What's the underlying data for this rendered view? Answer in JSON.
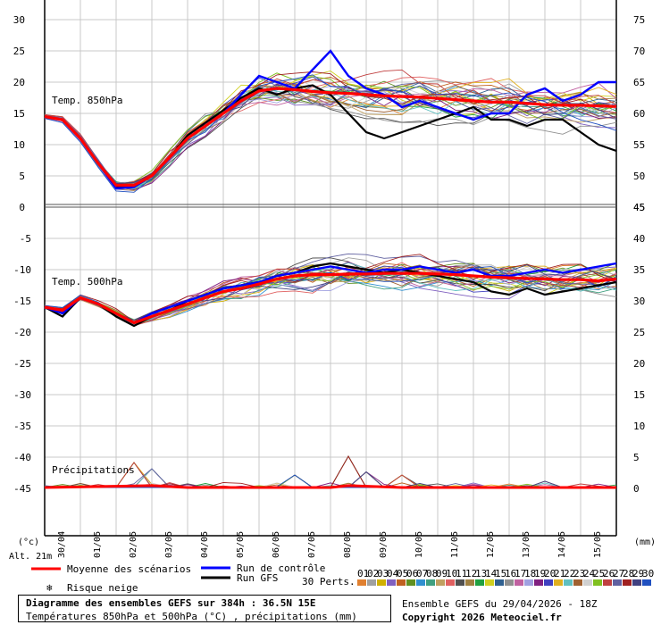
{
  "chart_data": [
    {
      "type": "line",
      "panel": "temp850",
      "label": "Temp. 850hPa",
      "unit_left": "°C",
      "ylim_left": [
        0,
        30
      ],
      "left_ticks": [
        0,
        5,
        10,
        15,
        20,
        25,
        30
      ],
      "right_ticks": [
        45,
        50,
        55,
        60,
        65,
        70,
        75
      ],
      "mean": [
        [
          0,
          14.5
        ],
        [
          1,
          14
        ],
        [
          2,
          11
        ],
        [
          3,
          7
        ],
        [
          4,
          3.5
        ],
        [
          5,
          3.5
        ],
        [
          6,
          5
        ],
        [
          7,
          8
        ],
        [
          8,
          11
        ],
        [
          9,
          13
        ],
        [
          10,
          15
        ],
        [
          11,
          17
        ],
        [
          12,
          18.6
        ],
        [
          13,
          19
        ],
        [
          14,
          18.8
        ],
        [
          15,
          18.5
        ],
        [
          16,
          18.3
        ],
        [
          17,
          18.2
        ],
        [
          18,
          18
        ],
        [
          19,
          17.8
        ],
        [
          20,
          17.7
        ],
        [
          21,
          17.6
        ],
        [
          22,
          17.4
        ],
        [
          23,
          17.2
        ],
        [
          24,
          17
        ],
        [
          25,
          16.8
        ],
        [
          26,
          16.8
        ],
        [
          27,
          16.6
        ],
        [
          28,
          16.4
        ],
        [
          29,
          16.3
        ],
        [
          30,
          16.3
        ],
        [
          31,
          16.2
        ],
        [
          32,
          16.1
        ]
      ],
      "control": [
        [
          0,
          14.5
        ],
        [
          1,
          14
        ],
        [
          2,
          11
        ],
        [
          3,
          7
        ],
        [
          4,
          3
        ],
        [
          5,
          3.2
        ],
        [
          6,
          5
        ],
        [
          7,
          8
        ],
        [
          8,
          11
        ],
        [
          9,
          13
        ],
        [
          10,
          15
        ],
        [
          11,
          18
        ],
        [
          12,
          21
        ],
        [
          13,
          20
        ],
        [
          14,
          19
        ],
        [
          15,
          22
        ],
        [
          16,
          25
        ],
        [
          17,
          21
        ],
        [
          18,
          19
        ],
        [
          19,
          18
        ],
        [
          20,
          16
        ],
        [
          21,
          17
        ],
        [
          22,
          16
        ],
        [
          23,
          15
        ],
        [
          24,
          14
        ],
        [
          25,
          15
        ],
        [
          26,
          15
        ],
        [
          27,
          18
        ],
        [
          28,
          19
        ],
        [
          29,
          17
        ],
        [
          30,
          18
        ],
        [
          31,
          20
        ],
        [
          32,
          20
        ]
      ],
      "gfs": [
        [
          0,
          14.5
        ],
        [
          1,
          14
        ],
        [
          2,
          11
        ],
        [
          3,
          7
        ],
        [
          4,
          3.2
        ],
        [
          5,
          3.5
        ],
        [
          6,
          5
        ],
        [
          7,
          8
        ],
        [
          8,
          11.5
        ],
        [
          9,
          13.5
        ],
        [
          10,
          15.5
        ],
        [
          11,
          17.5
        ],
        [
          12,
          19
        ],
        [
          13,
          18
        ],
        [
          14,
          19
        ],
        [
          15,
          19.5
        ],
        [
          16,
          18
        ],
        [
          17,
          15
        ],
        [
          18,
          12
        ],
        [
          19,
          11
        ],
        [
          20,
          12
        ],
        [
          21,
          13
        ],
        [
          22,
          14
        ],
        [
          23,
          15
        ],
        [
          24,
          16
        ],
        [
          25,
          14
        ],
        [
          26,
          14
        ],
        [
          27,
          13
        ],
        [
          28,
          14
        ],
        [
          29,
          14
        ],
        [
          30,
          12
        ],
        [
          31,
          10
        ],
        [
          32,
          9
        ]
      ]
    },
    {
      "type": "line",
      "panel": "temp500",
      "label": "Temp. 500hPa",
      "unit_left": "°C",
      "ylim_left": [
        -45,
        0
      ],
      "left_ticks": [
        -45,
        -40,
        -35,
        -30,
        -25,
        -20,
        -15,
        -10,
        -5
      ],
      "right_ticks": [
        0,
        5,
        10,
        15,
        20,
        25,
        30,
        35,
        40,
        45
      ],
      "mean": [
        [
          0,
          -16
        ],
        [
          1,
          -16.5
        ],
        [
          2,
          -14.5
        ],
        [
          3,
          -15.5
        ],
        [
          4,
          -17
        ],
        [
          5,
          -18.5
        ],
        [
          6,
          -17.5
        ],
        [
          7,
          -16.5
        ],
        [
          8,
          -15.5
        ],
        [
          9,
          -14.5
        ],
        [
          10,
          -13.5
        ],
        [
          11,
          -13
        ],
        [
          12,
          -12.3
        ],
        [
          13,
          -11.5
        ],
        [
          14,
          -11
        ],
        [
          15,
          -10.8
        ],
        [
          16,
          -10.8
        ],
        [
          17,
          -10.7
        ],
        [
          18,
          -10.7
        ],
        [
          19,
          -10.6
        ],
        [
          20,
          -10.6
        ],
        [
          21,
          -10.6
        ],
        [
          22,
          -10.7
        ],
        [
          23,
          -10.8
        ],
        [
          24,
          -11
        ],
        [
          25,
          -11.2
        ],
        [
          26,
          -11.3
        ],
        [
          27,
          -11.4
        ],
        [
          28,
          -11.5
        ],
        [
          29,
          -11.6
        ],
        [
          30,
          -11.6
        ],
        [
          31,
          -11.8
        ],
        [
          32,
          -11.5
        ]
      ],
      "control": [
        [
          0,
          -16
        ],
        [
          1,
          -17
        ],
        [
          2,
          -14.5
        ],
        [
          3,
          -15.5
        ],
        [
          4,
          -17
        ],
        [
          5,
          -18.5
        ],
        [
          6,
          -17
        ],
        [
          7,
          -16
        ],
        [
          8,
          -15
        ],
        [
          9,
          -14
        ],
        [
          10,
          -13
        ],
        [
          11,
          -12.5
        ],
        [
          12,
          -12
        ],
        [
          13,
          -11
        ],
        [
          14,
          -10.5
        ],
        [
          15,
          -10
        ],
        [
          16,
          -9.5
        ],
        [
          17,
          -10
        ],
        [
          18,
          -10.5
        ],
        [
          19,
          -10
        ],
        [
          20,
          -10
        ],
        [
          21,
          -9.5
        ],
        [
          22,
          -10
        ],
        [
          23,
          -10.5
        ],
        [
          24,
          -10
        ],
        [
          25,
          -11
        ],
        [
          26,
          -11
        ],
        [
          27,
          -10.5
        ],
        [
          28,
          -10
        ],
        [
          29,
          -10.5
        ],
        [
          30,
          -10
        ],
        [
          31,
          -9.5
        ],
        [
          32,
          -9
        ]
      ],
      "gfs": [
        [
          0,
          -16
        ],
        [
          1,
          -17.5
        ],
        [
          2,
          -14.5
        ],
        [
          3,
          -15.5
        ],
        [
          4,
          -17.5
        ],
        [
          5,
          -19
        ],
        [
          6,
          -17.5
        ],
        [
          7,
          -16.5
        ],
        [
          8,
          -15
        ],
        [
          9,
          -14
        ],
        [
          10,
          -13
        ],
        [
          11,
          -12.5
        ],
        [
          12,
          -12
        ],
        [
          13,
          -11
        ],
        [
          14,
          -10.5
        ],
        [
          15,
          -9.5
        ],
        [
          16,
          -9
        ],
        [
          17,
          -9.5
        ],
        [
          18,
          -10
        ],
        [
          19,
          -10.5
        ],
        [
          20,
          -10
        ],
        [
          21,
          -10.5
        ],
        [
          22,
          -11
        ],
        [
          23,
          -11.5
        ],
        [
          24,
          -12
        ],
        [
          25,
          -13.5
        ],
        [
          26,
          -14
        ],
        [
          27,
          -13
        ],
        [
          28,
          -14
        ],
        [
          29,
          -13.5
        ],
        [
          30,
          -13
        ],
        [
          31,
          -12.5
        ],
        [
          32,
          -12
        ]
      ]
    },
    {
      "type": "line",
      "panel": "precip",
      "label": "Précipitations",
      "unit_right": "mm",
      "mean": [
        [
          0,
          0
        ],
        [
          4,
          0.2
        ],
        [
          6,
          0.3
        ],
        [
          8,
          0
        ],
        [
          16,
          0
        ],
        [
          17,
          0.3
        ],
        [
          20,
          0
        ],
        [
          32,
          0
        ]
      ],
      "peaks": [
        [
          5,
          4
        ],
        [
          6,
          3
        ],
        [
          14,
          2
        ],
        [
          17,
          5
        ],
        [
          18,
          2.5
        ],
        [
          20,
          2
        ],
        [
          28,
          1
        ]
      ]
    }
  ],
  "axes": {
    "x_ticks": [
      "30/04",
      "01/05",
      "02/05",
      "03/05",
      "04/05",
      "05/05",
      "06/05",
      "07/05",
      "08/05",
      "09/05",
      "10/05",
      "11/05",
      "12/05",
      "13/05",
      "14/05",
      "15/05"
    ],
    "left_unit": "(°c)",
    "right_unit": "(mm)",
    "altitude": "Alt. 21m"
  },
  "legend": {
    "mean": "Moyenne des scénarios",
    "control": "Run de contrôle",
    "gfs": "Run GFS",
    "snow": "Risque neige",
    "perts_label": "30 Perts.",
    "pert_numbers": [
      "01",
      "02",
      "03",
      "04",
      "05",
      "06",
      "07",
      "08",
      "09",
      "10",
      "11",
      "12",
      "13",
      "14",
      "15",
      "16",
      "17",
      "18",
      "19",
      "20",
      "21",
      "22",
      "23",
      "24",
      "25",
      "26",
      "27",
      "28",
      "29",
      "30"
    ],
    "pert_colors": [
      "#e08030",
      "#a0a0a0",
      "#d0b000",
      "#8060c0",
      "#c06020",
      "#609020",
      "#3090d0",
      "#40a080",
      "#c0a060",
      "#e06060",
      "#505050",
      "#a08040",
      "#20a040",
      "#d0d020",
      "#306090",
      "#909090",
      "#c060a0",
      "#a0a0e0",
      "#802080",
      "#4040c0",
      "#e0b020",
      "#60c0c0",
      "#a06030",
      "#d0d0d0",
      "#80c020",
      "#c04040",
      "#6060a0",
      "#a02020",
      "#404080",
      "#2050c0"
    ],
    "mean_color": "#ff0000",
    "control_color": "#0000ff",
    "gfs_color": "#000000"
  },
  "footer": {
    "title": "Diagramme des ensembles GEFS sur 384h : 36.5N 15E",
    "subtitle": "Températures 850hPa et 500hPa (°C) , précipitations (mm)",
    "ens_info": "Ensemble GEFS du 29/04/2026 - 18Z",
    "copyright": "Copyright 2026 Meteociel.fr"
  }
}
